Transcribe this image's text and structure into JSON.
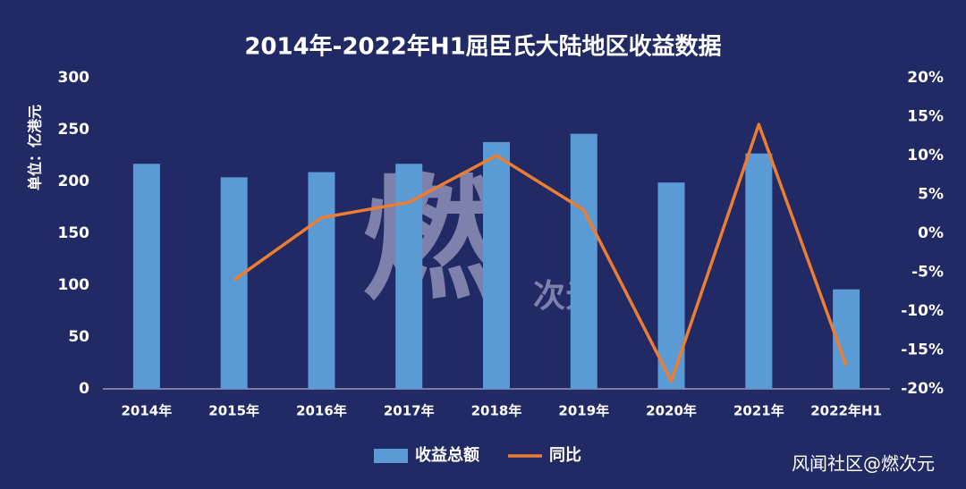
{
  "chart_data": {
    "type": "bar_line",
    "title": "2014年-2022年H1屈臣氏大陆地区收益数据",
    "y_label": "单位：亿港元",
    "categories": [
      "2014年",
      "2015年",
      "2016年",
      "2017年",
      "2018年",
      "2019年",
      "2020年",
      "2021年",
      "2022年H1"
    ],
    "series": [
      {
        "name": "收益总额",
        "type": "bar",
        "color": "#5b9bd5",
        "values": [
          217,
          204,
          209,
          217,
          238,
          246,
          199,
          227,
          96
        ]
      },
      {
        "name": "同比",
        "type": "line",
        "axis": "y2",
        "color": "#ed7d31",
        "values": [
          null,
          -6,
          2,
          4,
          10,
          3,
          -19,
          14,
          -17
        ]
      }
    ],
    "ylim": [
      0,
      300
    ],
    "yticks": [
      0,
      50,
      100,
      150,
      200,
      250,
      300
    ],
    "y2lim": [
      -20,
      20
    ],
    "y2ticks": [
      {
        "value": -20,
        "label": "-20%"
      },
      {
        "value": -15,
        "label": "-15%"
      },
      {
        "value": -10,
        "label": "-10%"
      },
      {
        "value": -5,
        "label": "-5%"
      },
      {
        "value": 0,
        "label": "0%"
      },
      {
        "value": 5,
        "label": "5%"
      },
      {
        "value": 10,
        "label": "10%"
      },
      {
        "value": 15,
        "label": "15%"
      },
      {
        "value": 20,
        "label": "20%"
      }
    ],
    "legend": "bottom",
    "annotations": [
      "燃",
      "次元",
      "风闻社区@燃次元"
    ]
  }
}
